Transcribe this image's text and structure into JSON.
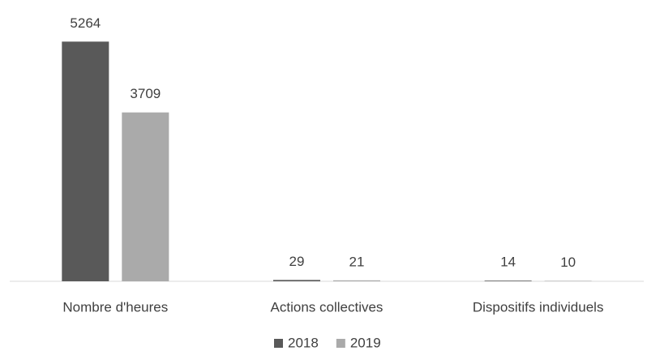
{
  "chart_data": {
    "type": "bar",
    "categories": [
      "Nombre d'heures",
      "Actions collectives",
      "Dispositifs individuels"
    ],
    "series": [
      {
        "name": "2018",
        "color": "#595959",
        "values": [
          5264,
          29,
          14
        ]
      },
      {
        "name": "2019",
        "color": "#aaaaaa",
        "values": [
          3709,
          21,
          10
        ]
      }
    ],
    "ylim": [
      0,
      6000
    ],
    "legend": "bottom"
  }
}
